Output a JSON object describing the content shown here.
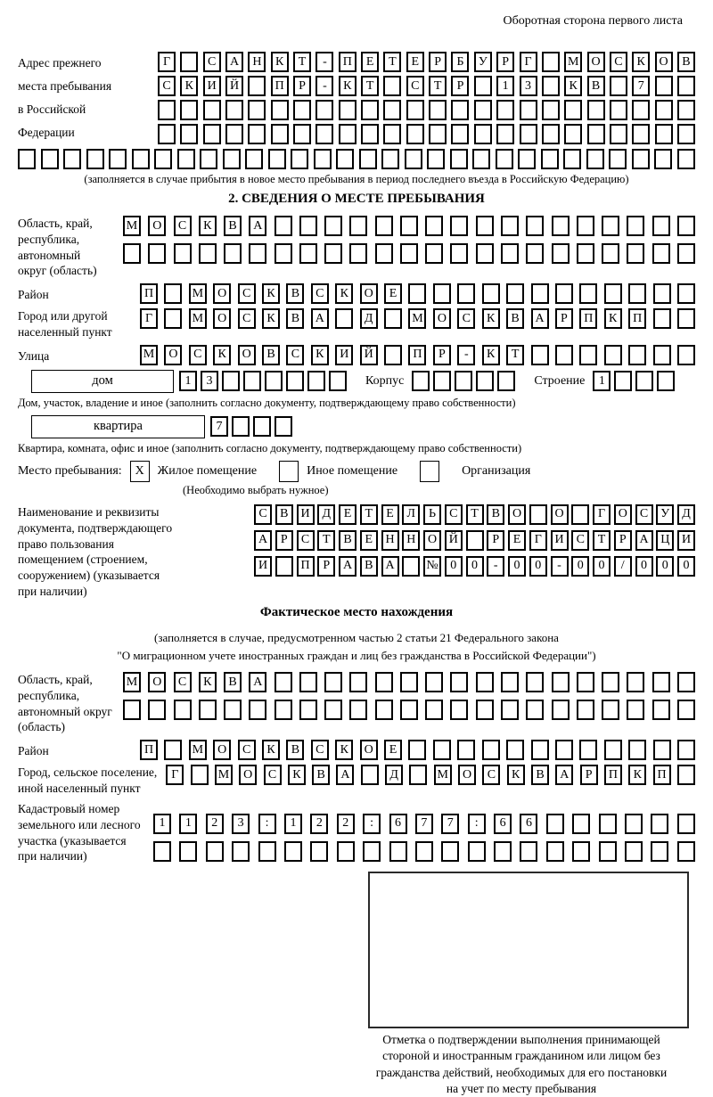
{
  "page": {
    "header_note": "Оборотная сторона первого листа"
  },
  "prev_address": {
    "label": [
      "Адрес прежнего",
      "места пребывания",
      "в Российской",
      "Федерации"
    ],
    "rows": [
      [
        "Г",
        "",
        "С",
        "А",
        "Н",
        "К",
        "Т",
        "-",
        "П",
        "Е",
        "Т",
        "Е",
        "Р",
        "Б",
        "У",
        "Р",
        "Г",
        "",
        "М",
        "О",
        "С",
        "К",
        "О",
        "В"
      ],
      [
        "С",
        "К",
        "И",
        "Й",
        "",
        "П",
        "Р",
        "-",
        "К",
        "Т",
        "",
        "С",
        "Т",
        "Р",
        "",
        "1",
        "3",
        "",
        "К",
        "В",
        "",
        "7",
        "",
        ""
      ],
      24,
      24
    ],
    "full_row": 30,
    "caption": "(заполняется в случае прибытия в новое место пребывания в период последнего въезда в Российскую Федерацию)"
  },
  "section2": {
    "title": "2. СВЕДЕНИЯ О МЕСТЕ ПРЕБЫВАНИЯ",
    "region": {
      "label": [
        "Область, край,",
        "республика,",
        "автономный",
        "округ (область)"
      ],
      "rows": [
        [
          "М",
          "О",
          "С",
          "К",
          "В",
          "А",
          "",
          "",
          "",
          "",
          "",
          "",
          "",
          "",
          "",
          "",
          "",
          "",
          "",
          "",
          "",
          "",
          ""
        ],
        23
      ]
    },
    "district": {
      "label": "Район",
      "row": [
        "П",
        "",
        "М",
        "О",
        "С",
        "К",
        "В",
        "С",
        "К",
        "О",
        "Е",
        "",
        "",
        "",
        "",
        "",
        "",
        "",
        "",
        "",
        "",
        "",
        ""
      ]
    },
    "city": {
      "label": [
        "Город или другой",
        "населенный пункт"
      ],
      "row": [
        "Г",
        "",
        "М",
        "О",
        "С",
        "К",
        "В",
        "А",
        "",
        "Д",
        "",
        "М",
        "О",
        "С",
        "К",
        "В",
        "А",
        "Р",
        "П",
        "К",
        "П",
        "",
        ""
      ]
    },
    "street": {
      "label": "Улица",
      "row": [
        "М",
        "О",
        "С",
        "К",
        "О",
        "В",
        "С",
        "К",
        "И",
        "Й",
        "",
        "П",
        "Р",
        "-",
        "К",
        "Т",
        "",
        "",
        "",
        "",
        "",
        "",
        ""
      ]
    },
    "house_line": {
      "house_label": "дом",
      "house_cells": [
        "1",
        "3",
        "",
        "",
        "",
        "",
        "",
        ""
      ],
      "korpus_label": "Корпус",
      "korpus_cells": 5,
      "stroenie_label": "Строение",
      "stroenie_cells": [
        "1",
        "",
        "",
        ""
      ]
    },
    "house_caption": "Дом, участок, владение и иное (заполнить согласно документу, подтверждающему право собственности)",
    "apartment_line": {
      "label": "квартира",
      "cells": [
        "7",
        "",
        "",
        ""
      ]
    },
    "apartment_caption": "Квартира, комната, офис и иное (заполнить согласно документу, подтверждающему право собственности)",
    "stay_type": {
      "label": "Место пребывания:",
      "options": [
        {
          "checked": "X",
          "label": "Жилое помещение"
        },
        {
          "checked": "",
          "label": "Иное помещение"
        },
        {
          "checked": "",
          "label": "Организация"
        }
      ],
      "caption": "(Необходимо выбрать нужное)"
    },
    "document": {
      "label": [
        "Наименование и реквизиты",
        "документа, подтверждающего",
        "право пользования",
        "помещением (строением,",
        "сооружением) (указывается",
        "при наличии)"
      ],
      "rows": [
        [
          "С",
          "В",
          "И",
          "Д",
          "Е",
          "Т",
          "Е",
          "Л",
          "Ь",
          "С",
          "Т",
          "В",
          "О",
          "",
          "О",
          "",
          "Г",
          "О",
          "С",
          "У",
          "Д"
        ],
        [
          "А",
          "Р",
          "С",
          "Т",
          "В",
          "Е",
          "Н",
          "Н",
          "О",
          "Й",
          "",
          "Р",
          "Е",
          "Г",
          "И",
          "С",
          "Т",
          "Р",
          "А",
          "Ц",
          "И"
        ],
        [
          "И",
          "",
          "П",
          "Р",
          "А",
          "В",
          "А",
          "",
          "№",
          "0",
          "0",
          "-",
          "0",
          "0",
          "-",
          "0",
          "0",
          "/",
          "0",
          "0",
          "0"
        ]
      ]
    }
  },
  "actual_location": {
    "title": "Фактическое место нахождения",
    "note": [
      "(заполняется в случае, предусмотренном частью 2 статьи 21 Федерального закона",
      "\"О миграционном учете иностранных граждан и лиц без гражданства в Российской Федерации\")"
    ],
    "region": {
      "label": [
        "Область, край,",
        "республика,",
        "автономный округ",
        "(область)"
      ],
      "rows": [
        [
          "М",
          "О",
          "С",
          "К",
          "В",
          "А",
          "",
          "",
          "",
          "",
          "",
          "",
          "",
          "",
          "",
          "",
          "",
          "",
          "",
          "",
          "",
          "",
          ""
        ],
        23
      ]
    },
    "district": {
      "label": "Район",
      "row": [
        "П",
        "",
        "М",
        "О",
        "С",
        "К",
        "В",
        "С",
        "К",
        "О",
        "Е",
        "",
        "",
        "",
        "",
        "",
        "",
        "",
        "",
        "",
        "",
        "",
        ""
      ]
    },
    "city": {
      "label": [
        "Город, сельское поселение,",
        "иной населенный пункт"
      ],
      "row": [
        "Г",
        "",
        "М",
        "О",
        "С",
        "К",
        "В",
        "А",
        "",
        "Д",
        "",
        "М",
        "О",
        "С",
        "К",
        "В",
        "А",
        "Р",
        "П",
        "К",
        "П",
        ""
      ]
    },
    "cadastral": {
      "label": [
        "Кадастровый номер",
        "земельного или лесного",
        "участка (указывается",
        "при наличии)"
      ],
      "rows": [
        [
          "1",
          "1",
          "2",
          "3",
          ":",
          "1",
          "2",
          "2",
          ":",
          "6",
          "7",
          "7",
          ":",
          "6",
          "6",
          "",
          "",
          "",
          "",
          "",
          ""
        ],
        21
      ]
    },
    "mark_caption": [
      "Отметка о подтверждении выполнения принимающей",
      "стороной и иностранным гражданином или лицом без",
      "гражданства действий, необходимых для его постановки",
      "на учет по месту пребывания"
    ]
  }
}
